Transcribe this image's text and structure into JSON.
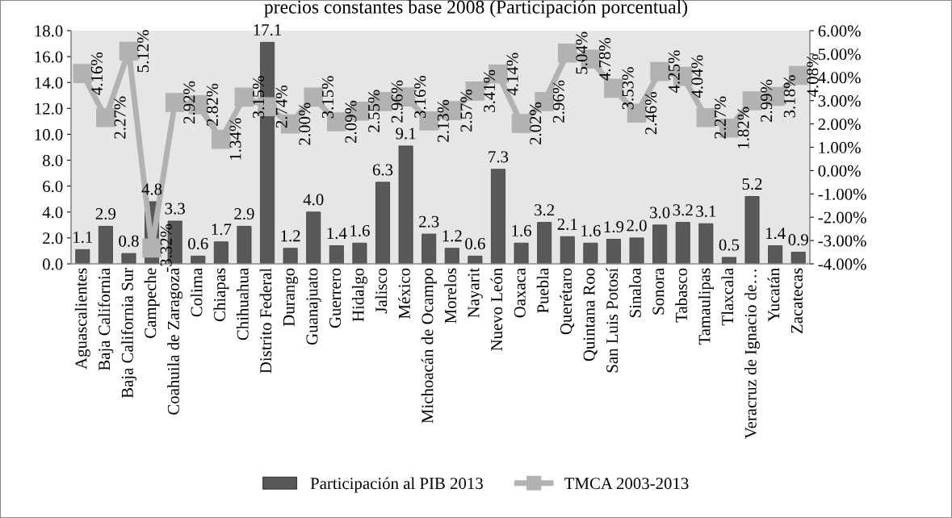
{
  "chart_data": {
    "type": "bar",
    "title": "precios constantes base 2008 (Participación porcentual)",
    "categories": [
      "Aguascalientes",
      "Baja California",
      "Baja California Sur",
      "Campeche",
      "Coahuila de Zaragoza",
      "Colima",
      "Chiapas",
      "Chihuahua",
      "Distrito Federal",
      "Durango",
      "Guanajuato",
      "Guerrero",
      "Hidalgo",
      "Jalisco",
      "México",
      "Michoacán de Ocampo",
      "Morelos",
      "Nayarit",
      "Nuevo León",
      "Oaxaca",
      "Puebla",
      "Querétaro",
      "Quintana Roo",
      "San Luis Potosí",
      "Sinaloa",
      "Sonora",
      "Tabasco",
      "Tamaulipas",
      "Tlaxcala",
      "Veracruz de Ignacio de…",
      "Yucatán",
      "Zacatecas"
    ],
    "series": [
      {
        "name": "Participación al PIB 2013",
        "color": "#595959",
        "values": [
          1.1,
          2.9,
          0.8,
          4.8,
          3.3,
          0.6,
          1.7,
          2.9,
          17.1,
          1.2,
          4.0,
          1.4,
          1.6,
          6.3,
          9.1,
          2.3,
          1.2,
          0.6,
          7.3,
          1.6,
          3.2,
          2.1,
          1.6,
          1.9,
          2.0,
          3.0,
          3.2,
          3.1,
          0.5,
          5.2,
          1.4,
          0.9
        ],
        "value_labels": [
          "1.1",
          "2.9",
          "0.8",
          "4.8",
          "3.3",
          "0.6",
          "1.7",
          "2.9",
          "17.1",
          "1.2",
          "4.0",
          "1.4",
          "1.6",
          "6.3",
          "9.1",
          "2.3",
          "1.2",
          "0.6",
          "7.3",
          "1.6",
          "3.2",
          "2.1",
          "1.6",
          "1.9",
          "2.0",
          "3.0",
          "3.2",
          "3.1",
          "0.5",
          "5.2",
          "1.4",
          "0.9"
        ]
      },
      {
        "name": "TMCA 2003-2013",
        "type": "line",
        "axis": "y2",
        "color": "#b2b2b2",
        "marker": "square",
        "values": [
          4.16,
          2.27,
          5.12,
          -3.32,
          2.92,
          2.82,
          1.34,
          3.15,
          2.74,
          2.0,
          3.15,
          2.09,
          2.55,
          2.96,
          3.16,
          2.13,
          2.57,
          3.41,
          4.14,
          2.02,
          2.96,
          5.04,
          4.78,
          3.53,
          2.46,
          4.25,
          4.04,
          2.27,
          1.82,
          2.99,
          3.18,
          4.08
        ],
        "value_labels": [
          "4.16%",
          "2.27%",
          "5.12%",
          "-3.32%",
          "2.92%",
          "2.82%",
          "1.34%",
          "3.15%",
          "2.74%",
          "2.00%",
          "3.15%",
          "2.09%",
          "2.55%",
          "2.96%",
          "3.16%",
          "2.13%",
          "2.57%",
          "3.41%",
          "4.14%",
          "2.02%",
          "2.96%",
          "5.04%",
          "4.78%",
          "3.53%",
          "2.46%",
          "4.25%",
          "4.04%",
          "2.27%",
          "1.82%",
          "2.99%",
          "3.18%",
          "4.08%"
        ]
      }
    ],
    "ylim": [
      0,
      18
    ],
    "yticks": [
      {
        "value": 0,
        "label": "0.0"
      },
      {
        "value": 2,
        "label": "2.0"
      },
      {
        "value": 4,
        "label": "4.0"
      },
      {
        "value": 6,
        "label": "6.0"
      },
      {
        "value": 8,
        "label": "8.0"
      },
      {
        "value": 10,
        "label": "10.0"
      },
      {
        "value": 12,
        "label": "12.0"
      },
      {
        "value": 14,
        "label": "14.0"
      },
      {
        "value": 16,
        "label": "16.0"
      },
      {
        "value": 18,
        "label": "18.0"
      }
    ],
    "y2lim": [
      -4,
      6
    ],
    "y2ticks": [
      {
        "value": -4,
        "label": "-4.00%"
      },
      {
        "value": -3,
        "label": "-3.00%"
      },
      {
        "value": -2,
        "label": "-2.00%"
      },
      {
        "value": -1,
        "label": "-1.00%"
      },
      {
        "value": 0,
        "label": "0.00%"
      },
      {
        "value": 1,
        "label": "1.00%"
      },
      {
        "value": 2,
        "label": "2.00%"
      },
      {
        "value": 3,
        "label": "3.00%"
      },
      {
        "value": 4,
        "label": "4.00%"
      },
      {
        "value": 5,
        "label": "5.00%"
      },
      {
        "value": 6,
        "label": "6.00%"
      }
    ],
    "legend": "bottom",
    "grid": false
  }
}
